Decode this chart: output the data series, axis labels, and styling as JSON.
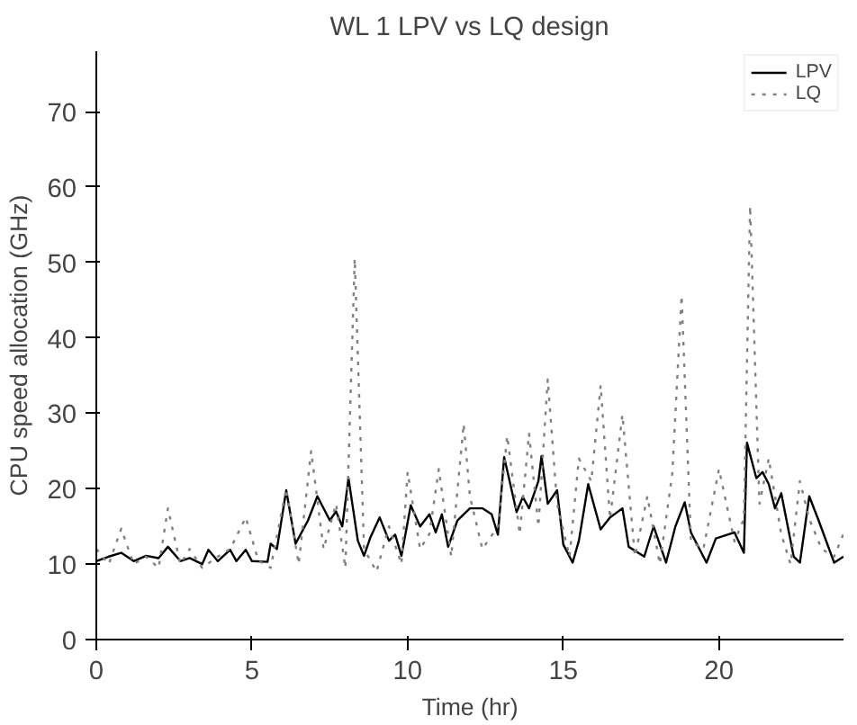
{
  "chart_data": {
    "type": "line",
    "title": "WL 1 LPV vs LQ design",
    "xlabel": "Time (hr)",
    "ylabel": "CPU speed allocation (GHz)",
    "xlim": [
      0,
      24
    ],
    "ylim": [
      0,
      78
    ],
    "xticks": [
      0,
      5,
      10,
      15,
      20
    ],
    "yticks": [
      0,
      10,
      20,
      30,
      40,
      50,
      60,
      70
    ],
    "grid": false,
    "legend": "top right",
    "series": [
      {
        "name": "LPV",
        "color": "#000000",
        "line_style": "solid",
        "x": [
          0,
          0.4,
          0.8,
          1.2,
          1.6,
          2.0,
          2.3,
          2.7,
          3.0,
          3.4,
          3.6,
          3.9,
          4.3,
          4.5,
          4.8,
          5.0,
          5.5,
          5.6,
          5.8,
          6.1,
          6.4,
          6.8,
          7.1,
          7.5,
          7.7,
          7.9,
          8.1,
          8.4,
          8.6,
          8.8,
          9.1,
          9.4,
          9.6,
          9.8,
          10.1,
          10.4,
          10.7,
          10.9,
          11.1,
          11.3,
          11.6,
          12.0,
          12.4,
          12.7,
          12.9,
          13.1,
          13.5,
          13.7,
          13.9,
          14.2,
          14.3,
          14.5,
          14.8,
          15.0,
          15.3,
          15.5,
          15.8,
          16.2,
          16.5,
          16.9,
          17.1,
          17.6,
          17.9,
          18.3,
          18.6,
          18.9,
          19.1,
          19.6,
          19.9,
          20.5,
          20.8,
          20.9,
          21.2,
          21.4,
          21.6,
          21.8,
          22.0,
          22.4,
          22.6,
          22.9,
          23.2,
          23.7,
          24
        ],
        "values": [
          10.4,
          11,
          11.5,
          10.4,
          11.1,
          10.8,
          12.3,
          10.4,
          10.8,
          10,
          11.9,
          10.4,
          11.9,
          10.4,
          11.9,
          10.4,
          10.3,
          12.7,
          12,
          19.8,
          12.7,
          15.8,
          19,
          15.8,
          17,
          15,
          21.4,
          13.1,
          11.1,
          13.5,
          16.2,
          13.1,
          13.9,
          11.1,
          17.8,
          15,
          16.6,
          14.2,
          16.6,
          12.3,
          15.8,
          17.4,
          17.4,
          16.6,
          13.9,
          24.2,
          16.9,
          18.9,
          17.4,
          21,
          24.3,
          18,
          19.8,
          12.6,
          10.2,
          13.1,
          20.6,
          14.6,
          16.2,
          17.4,
          12.3,
          11,
          15,
          10.2,
          15,
          18.2,
          14.2,
          10.2,
          13.4,
          14.2,
          11.5,
          26.1,
          21.4,
          22.2,
          20.6,
          17.4,
          19.4,
          11,
          10.2,
          19,
          15.8,
          10.2,
          11
        ]
      },
      {
        "name": "LQ",
        "color": "#808080",
        "line_style": "dotted",
        "x": [
          0,
          0.4,
          0.8,
          1.2,
          1.6,
          2.0,
          2.3,
          2.7,
          3.0,
          3.4,
          3.9,
          4.3,
          4.8,
          5.2,
          5.6,
          6.1,
          6.5,
          6.9,
          7.3,
          7.7,
          8.0,
          8.3,
          8.6,
          9.0,
          9.4,
          9.8,
          10.0,
          10.4,
          10.7,
          11.0,
          11.4,
          11.8,
          12.0,
          12.4,
          12.9,
          13.2,
          13.6,
          13.9,
          14.2,
          14.5,
          14.8,
          15.2,
          15.5,
          15.9,
          16.2,
          16.5,
          16.9,
          17.3,
          17.7,
          18.1,
          18.5,
          18.8,
          19.1,
          19.5,
          20.0,
          20.5,
          20.8,
          21.0,
          21.3,
          21.6,
          22.0,
          22.3,
          22.6,
          22.9,
          23.3,
          23.7,
          24
        ],
        "values": [
          12,
          10,
          14.7,
          10,
          11,
          9.5,
          17.4,
          10,
          12,
          9.5,
          11,
          12,
          16.2,
          10.5,
          9.5,
          20,
          10,
          25,
          12,
          18,
          9.5,
          50.5,
          12,
          9,
          15,
          10,
          22.2,
          12,
          14,
          22.6,
          11,
          28.6,
          19,
          12,
          15,
          27,
          14,
          27.3,
          15,
          34.5,
          18,
          11,
          24,
          21,
          33.7,
          16,
          29.8,
          11,
          19,
          10,
          22,
          45.6,
          13,
          12,
          22.6,
          13,
          16,
          57.5,
          18,
          24,
          14,
          10,
          21,
          16,
          12,
          11,
          14
        ]
      }
    ]
  }
}
